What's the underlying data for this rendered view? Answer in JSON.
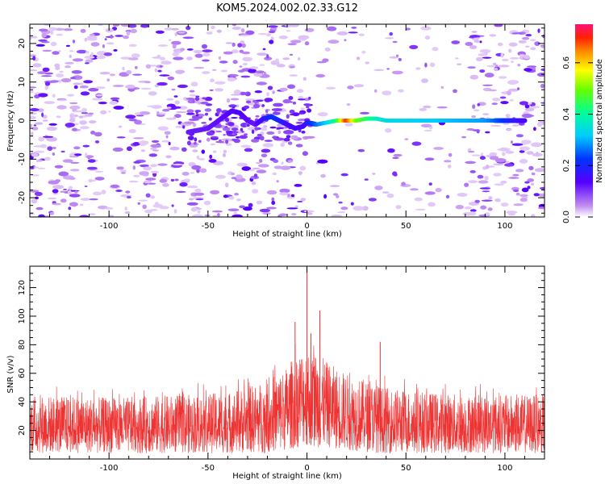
{
  "title": "KOM5.2024.002.02.33.G12",
  "chart_data": [
    {
      "type": "heatmap",
      "title": "KOM5.2024.002.02.33.G12",
      "xlabel": "Height of straight line (km)",
      "ylabel": "Frequency (Hz)",
      "xlim": [
        -140,
        120
      ],
      "ylim": [
        -25,
        25
      ],
      "x_ticks": [
        -100,
        -50,
        0,
        50,
        100
      ],
      "y_ticks": [
        -20,
        -10,
        0,
        10,
        20
      ],
      "colorbar": {
        "label": "Normalized spectral amplitude",
        "range": [
          0.0,
          0.75
        ],
        "ticks": [
          0.0,
          0.2,
          0.4,
          0.6
        ]
      },
      "ridge": {
        "x": [
          -60,
          -50,
          -42,
          -38,
          -34,
          -30,
          -26,
          -22,
          -18,
          -14,
          -10,
          -6,
          -2,
          0,
          5,
          10,
          15,
          20,
          25,
          30,
          35,
          40,
          50,
          60,
          70,
          80,
          90,
          100,
          110
        ],
        "y": [
          -3,
          -2,
          1,
          2.5,
          2,
          0,
          -1,
          0.5,
          1,
          0,
          -1,
          -2,
          -1.5,
          -0.5,
          -1,
          -0.5,
          0,
          0,
          0,
          0.5,
          0.5,
          0,
          0,
          0,
          0,
          0,
          0,
          0,
          0
        ],
        "amplitude": [
          0.12,
          0.12,
          0.13,
          0.14,
          0.14,
          0.13,
          0.12,
          0.16,
          0.22,
          0.2,
          0.16,
          0.15,
          0.15,
          0.17,
          0.26,
          0.32,
          0.42,
          0.7,
          0.5,
          0.44,
          0.38,
          0.34,
          0.33,
          0.32,
          0.31,
          0.3,
          0.29,
          0.22,
          0.14
        ]
      },
      "grid": false
    },
    {
      "type": "line",
      "xlabel": "Height of straight line (km)",
      "ylabel": "SNR (v/v)",
      "xlim": [
        -140,
        120
      ],
      "ylim": [
        0,
        135
      ],
      "x_ticks": [
        -100,
        -50,
        0,
        50,
        100
      ],
      "y_ticks": [
        20,
        40,
        60,
        80,
        100,
        120
      ],
      "color": "#ee3333",
      "envelope": {
        "x": [
          -140,
          -100,
          -60,
          -40,
          -20,
          -10,
          -5,
          0,
          5,
          10,
          20,
          30,
          40,
          60,
          80,
          100,
          120
        ],
        "low": [
          4,
          4,
          4,
          4,
          4,
          6,
          8,
          10,
          8,
          8,
          6,
          5,
          4,
          4,
          4,
          4,
          4
        ],
        "high": [
          45,
          43,
          45,
          47,
          55,
          65,
          75,
          80,
          75,
          68,
          60,
          55,
          50,
          47,
          45,
          45,
          45
        ]
      },
      "peaks": [
        {
          "x": 0,
          "y": 135
        },
        {
          "x": 6.5,
          "y": 104
        },
        {
          "x": -6,
          "y": 96
        },
        {
          "x": 37,
          "y": 82
        },
        {
          "x": 2,
          "y": 88
        }
      ],
      "grid": false
    }
  ]
}
